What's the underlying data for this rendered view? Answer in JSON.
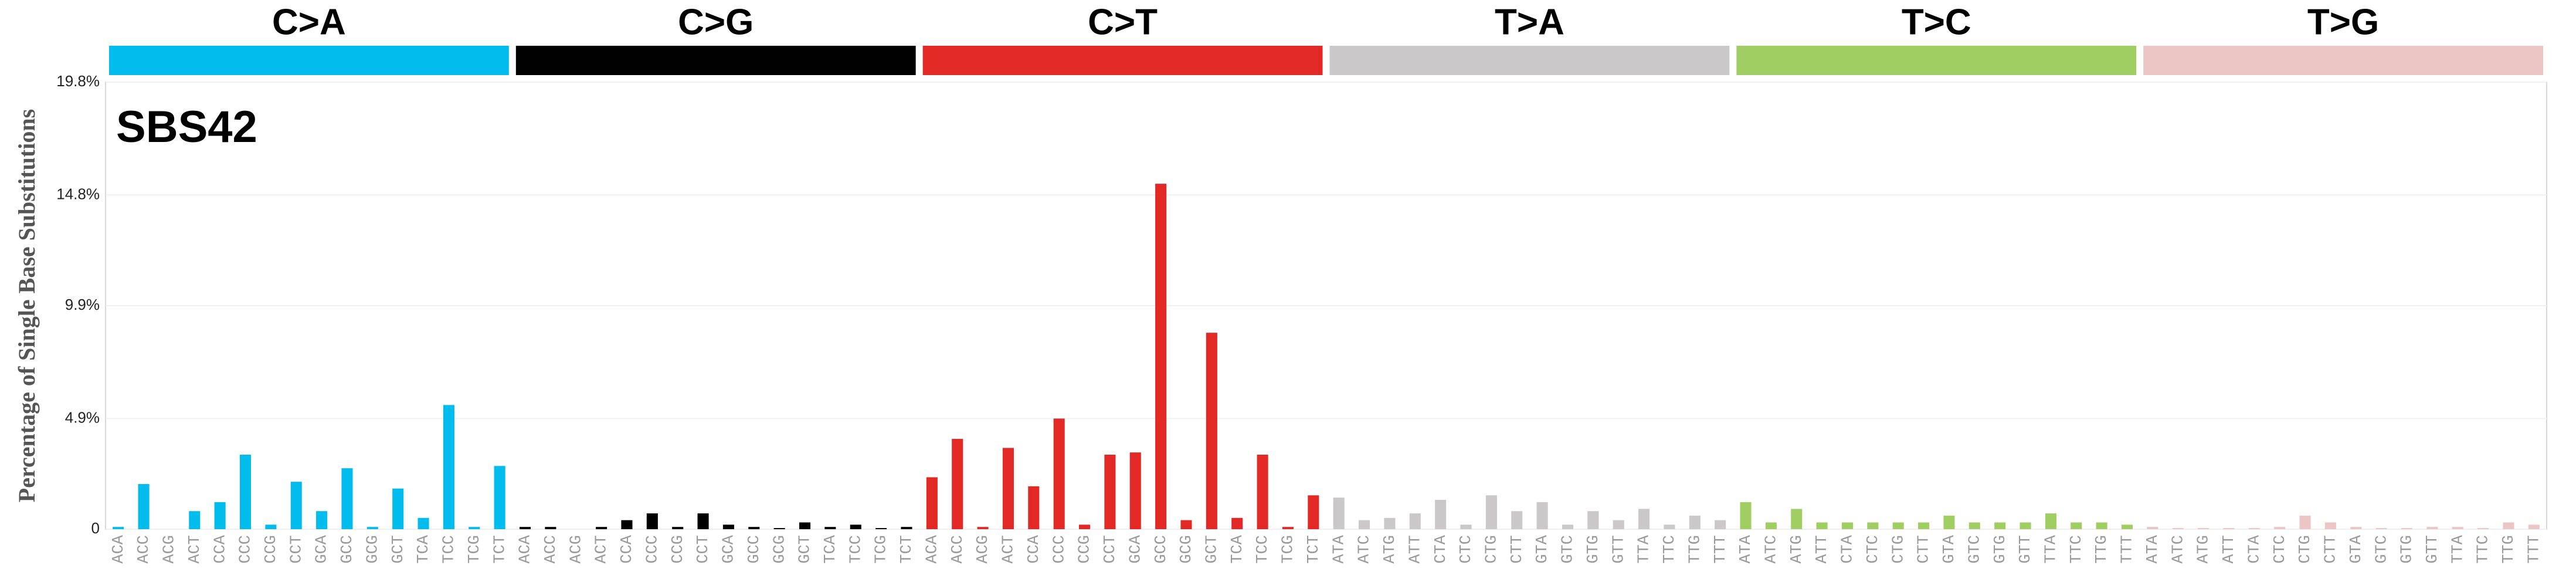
{
  "chart_data": {
    "type": "bar",
    "title": "SBS42",
    "y_label": "Percentage of Single Base Substitutions",
    "ylim": [
      0,
      19.8
    ],
    "yticks": [
      {
        "value": 0,
        "label": "0"
      },
      {
        "value": 4.9,
        "label": "4.9%"
      },
      {
        "value": 9.9,
        "label": "9.9%"
      },
      {
        "value": 14.8,
        "label": "14.8%"
      },
      {
        "value": 19.8,
        "label": "19.8%"
      }
    ],
    "grid": true,
    "groups": [
      {
        "name": "C>A",
        "color": "#03bcee",
        "categories": [
          "ACA",
          "ACC",
          "ACG",
          "ACT",
          "CCA",
          "CCC",
          "CCG",
          "CCT",
          "GCA",
          "GCC",
          "GCG",
          "GCT",
          "TCA",
          "TCC",
          "TCG",
          "TCT"
        ],
        "values": [
          0.1,
          2.0,
          0,
          0.8,
          1.2,
          3.3,
          0.2,
          2.1,
          0.8,
          2.7,
          0.1,
          1.8,
          0.5,
          5.5,
          0.1,
          2.8
        ]
      },
      {
        "name": "C>G",
        "color": "#010101",
        "categories": [
          "ACA",
          "ACC",
          "ACG",
          "ACT",
          "CCA",
          "CCC",
          "CCG",
          "CCT",
          "GCA",
          "GCC",
          "GCG",
          "GCT",
          "TCA",
          "TCC",
          "TCG",
          "TCT"
        ],
        "values": [
          0.1,
          0.1,
          0,
          0.1,
          0.4,
          0.7,
          0.1,
          0.7,
          0.2,
          0.1,
          0.05,
          0.3,
          0.1,
          0.2,
          0.05,
          0.1
        ]
      },
      {
        "name": "C>T",
        "color": "#e32926",
        "categories": [
          "ACA",
          "ACC",
          "ACG",
          "ACT",
          "CCA",
          "CCC",
          "CCG",
          "CCT",
          "GCA",
          "GCC",
          "GCG",
          "GCT",
          "TCA",
          "TCC",
          "TCG",
          "TCT"
        ],
        "values": [
          2.3,
          4.0,
          0.1,
          3.6,
          1.9,
          4.9,
          0.2,
          3.3,
          3.4,
          15.3,
          0.4,
          8.7,
          0.5,
          3.3,
          0.1,
          1.5
        ]
      },
      {
        "name": "T>A",
        "color": "#cac8c9",
        "categories": [
          "ATA",
          "ATC",
          "ATG",
          "ATT",
          "CTA",
          "CTC",
          "CTG",
          "CTT",
          "GTA",
          "GTC",
          "GTG",
          "GTT",
          "TTA",
          "TTC",
          "TTG",
          "TTT"
        ],
        "values": [
          1.4,
          0.4,
          0.5,
          0.7,
          1.3,
          0.2,
          1.5,
          0.8,
          1.2,
          0.2,
          0.8,
          0.4,
          0.9,
          0.2,
          0.6,
          0.4
        ]
      },
      {
        "name": "T>C",
        "color": "#a1ce63",
        "categories": [
          "ATA",
          "ATC",
          "ATG",
          "ATT",
          "CTA",
          "CTC",
          "CTG",
          "CTT",
          "GTA",
          "GTC",
          "GTG",
          "GTT",
          "TTA",
          "TTC",
          "TTG",
          "TTT"
        ],
        "values": [
          1.2,
          0.3,
          0.9,
          0.3,
          0.3,
          0.3,
          0.3,
          0.3,
          0.6,
          0.3,
          0.3,
          0.3,
          0.7,
          0.3,
          0.3,
          0.2
        ]
      },
      {
        "name": "T>G",
        "color": "#ebc6c4",
        "categories": [
          "ATA",
          "ATC",
          "ATG",
          "ATT",
          "CTA",
          "CTC",
          "CTG",
          "CTT",
          "GTA",
          "GTC",
          "GTG",
          "GTT",
          "TTA",
          "TTC",
          "TTG",
          "TTT"
        ],
        "values": [
          0.1,
          0.05,
          0.05,
          0.05,
          0.05,
          0.1,
          0.6,
          0.3,
          0.1,
          0.05,
          0.05,
          0.1,
          0.1,
          0.05,
          0.3,
          0.2
        ]
      }
    ]
  }
}
